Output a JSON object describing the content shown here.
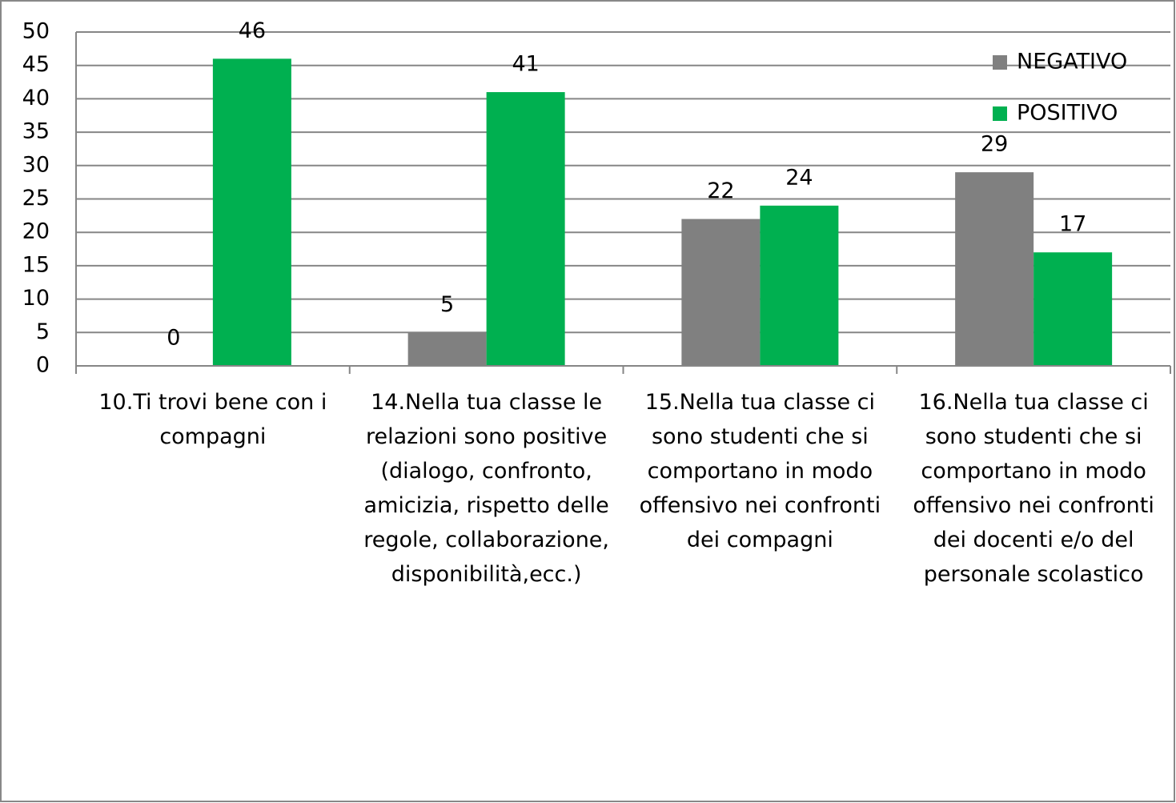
{
  "chart_data": {
    "type": "bar",
    "categories": [
      "10.Ti trovi bene con i compagni",
      "14.Nella tua classe le relazioni sono positive (dialogo, confronto, amicizia, rispetto delle regole, collaborazione, disponibilità,ecc.)",
      "15.Nella tua classe ci sono studenti che si comportano in modo offensivo nei confronti dei compagni",
      "16.Nella tua classe ci sono studenti che si comportano in modo offensivo nei confronti dei docenti e/o del personale scolastico"
    ],
    "series": [
      {
        "name": "NEGATIVO",
        "color": "#808080",
        "values": [
          0,
          5,
          22,
          29
        ]
      },
      {
        "name": "POSITIVO",
        "color": "#00b050",
        "values": [
          46,
          41,
          24,
          17
        ]
      }
    ],
    "ylim": [
      0,
      50
    ],
    "yticks": [
      0,
      5,
      10,
      15,
      20,
      25,
      30,
      35,
      40,
      45,
      50
    ],
    "grid": true,
    "legend": "top-right"
  }
}
